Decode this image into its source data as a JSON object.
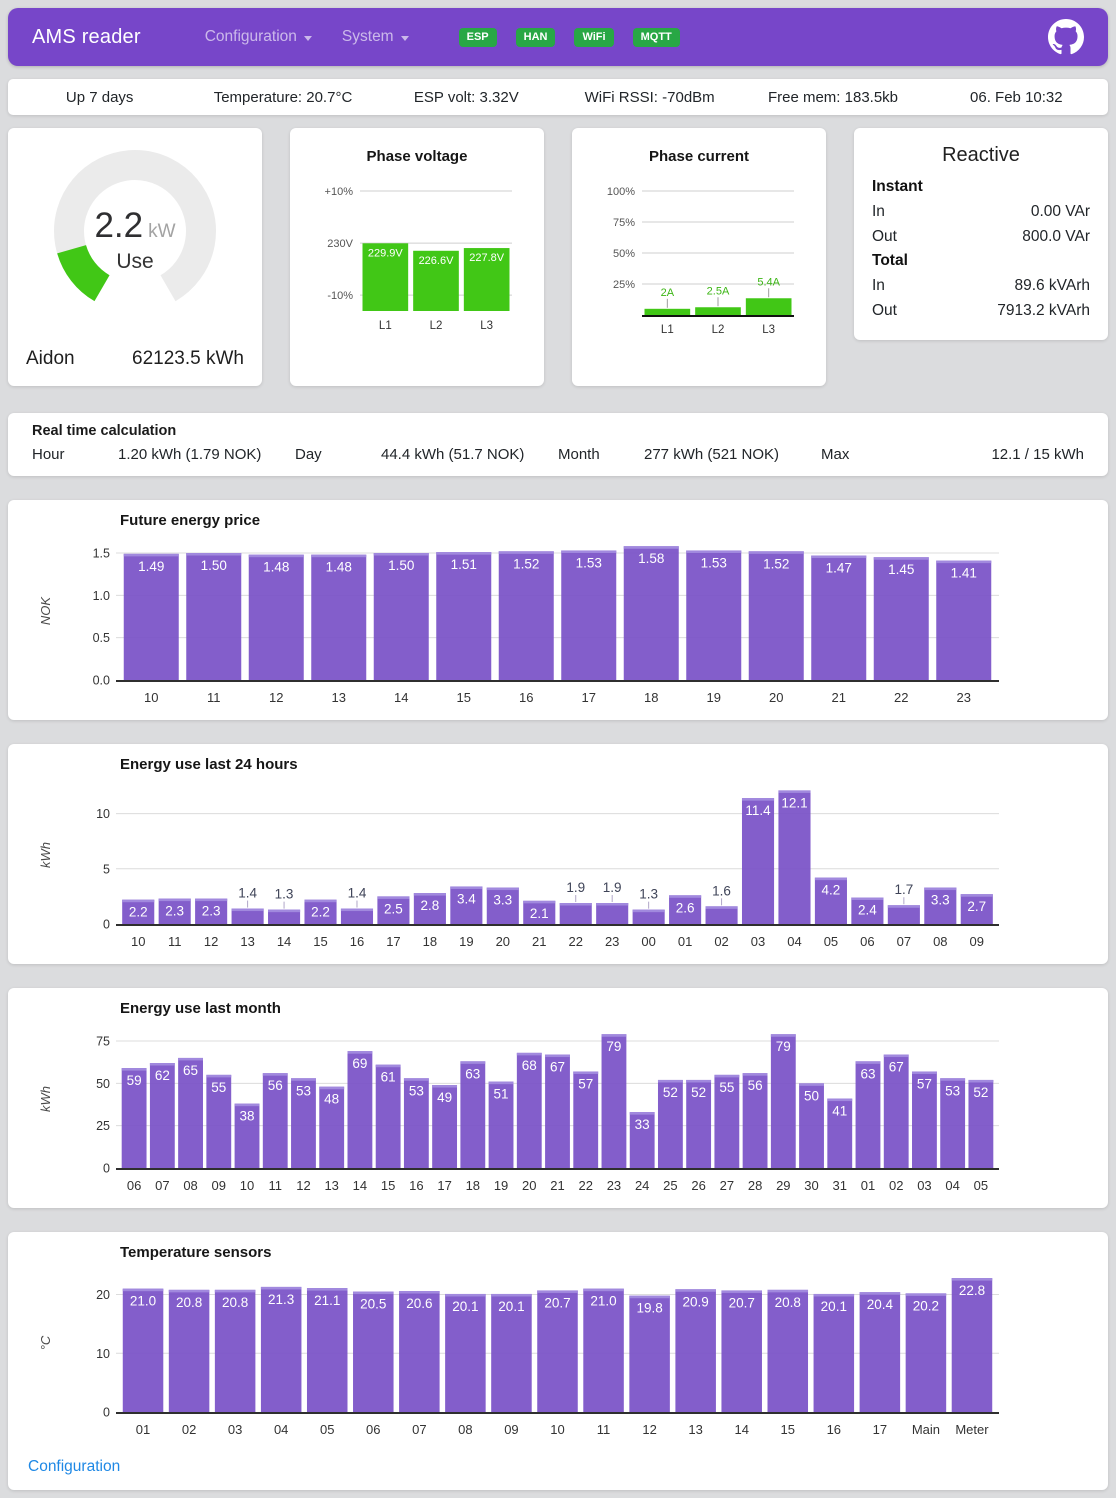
{
  "header": {
    "brand": "AMS reader",
    "nav": [
      {
        "label": "Configuration"
      },
      {
        "label": "System"
      }
    ],
    "badges": [
      "ESP",
      "HAN",
      "WiFi",
      "MQTT"
    ]
  },
  "status_bar": [
    "Up 7 days",
    "Temperature: 20.7°C",
    "ESP volt: 3.32V",
    "WiFi RSSI: -70dBm",
    "Free mem: 183.5kb",
    "06. Feb 10:32"
  ],
  "gauge": {
    "value": "2.2",
    "unit": "kW",
    "label": "Use",
    "meter_name": "Aidon",
    "total": "62123.5 kWh",
    "value_num": 2.2,
    "max": 15
  },
  "reactive": {
    "title": "Reactive",
    "sections": [
      {
        "title": "Instant",
        "rows": [
          [
            "In",
            "0.00 VAr"
          ],
          [
            "Out",
            "800.0 VAr"
          ]
        ]
      },
      {
        "title": "Total",
        "rows": [
          [
            "In",
            "89.6 kVArh"
          ],
          [
            "Out",
            "7913.2 kVArh"
          ]
        ]
      }
    ]
  },
  "realtime": {
    "title": "Real time calculation",
    "items": [
      [
        "Hour",
        "1.20 kWh (1.79 NOK)"
      ],
      [
        "Day",
        "44.4 kWh (51.7 NOK)"
      ],
      [
        "Month",
        "277 kWh (521 NOK)"
      ],
      [
        "Max",
        "12.1 / 15 kWh"
      ]
    ]
  },
  "footer": {
    "link": "Configuration"
  },
  "theme": {
    "purple": "#7746c9",
    "bar_purple": "#7a52c7",
    "bar_purple_cap": "#a189de",
    "green": "#41c716",
    "green_label": "#3cb615",
    "badge_green": "#28a745",
    "link_blue": "#1e88e5",
    "grid": "#dcdcdc",
    "axis": "#2f2f2f",
    "gauge_track": "#ebebeb"
  },
  "chart_data": [
    {
      "id": "phase_voltage",
      "type": "bar",
      "layout": "mini",
      "title": "Phase voltage",
      "categories": [
        "L1",
        "L2",
        "L3"
      ],
      "values": [
        229.9,
        226.6,
        227.8
      ],
      "value_labels": [
        "229.9V",
        "226.6V",
        "227.8V"
      ],
      "ticks": [
        {
          "label": "+10%",
          "value": 253
        },
        {
          "label": "230V",
          "value": 230
        },
        {
          "label": "-10%",
          "value": 207
        }
      ],
      "ymin": 200,
      "ymax": 253,
      "baseline": false,
      "color": "green",
      "label_placement": "inside"
    },
    {
      "id": "phase_current",
      "type": "bar",
      "layout": "mini",
      "title": "Phase current",
      "categories": [
        "L1",
        "L2",
        "L3"
      ],
      "values": [
        2,
        2.5,
        5.4
      ],
      "value_labels": [
        "2A",
        "2.5A",
        "5.4A"
      ],
      "ticks": [
        {
          "label": "100%",
          "value": 40
        },
        {
          "label": "75%",
          "value": 30
        },
        {
          "label": "50%",
          "value": 20
        },
        {
          "label": "25%",
          "value": 10
        }
      ],
      "ymin": 0,
      "ymax": 40,
      "baseline": true,
      "color": "green",
      "label_placement": "above"
    },
    {
      "id": "future_price",
      "type": "bar",
      "layout": "wide",
      "title": "Future energy price",
      "ylabel": "NOK",
      "categories": [
        "10",
        "11",
        "12",
        "13",
        "14",
        "15",
        "16",
        "17",
        "18",
        "19",
        "20",
        "21",
        "22",
        "23"
      ],
      "values": [
        1.49,
        1.5,
        1.48,
        1.48,
        1.5,
        1.51,
        1.52,
        1.53,
        1.58,
        1.53,
        1.52,
        1.47,
        1.45,
        1.41
      ],
      "value_labels": [
        "1.49",
        "1.50",
        "1.48",
        "1.48",
        "1.50",
        "1.51",
        "1.52",
        "1.53",
        "1.58",
        "1.53",
        "1.52",
        "1.47",
        "1.45",
        "1.41"
      ],
      "ticks": [
        {
          "label": "0.0",
          "value": 0
        },
        {
          "label": "0.5",
          "value": 0.5
        },
        {
          "label": "1.0",
          "value": 1.0
        },
        {
          "label": "1.5",
          "value": 1.5
        }
      ],
      "ylim": [
        0,
        1.63
      ]
    },
    {
      "id": "energy_24h",
      "type": "bar",
      "layout": "wide",
      "title": "Energy use last 24 hours",
      "ylabel": "kWh",
      "categories": [
        "10",
        "11",
        "12",
        "13",
        "14",
        "15",
        "16",
        "17",
        "18",
        "19",
        "20",
        "21",
        "22",
        "23",
        "00",
        "01",
        "02",
        "03",
        "04",
        "05",
        "06",
        "07",
        "08",
        "09"
      ],
      "values": [
        2.2,
        2.3,
        2.3,
        1.4,
        1.3,
        2.2,
        1.4,
        2.5,
        2.8,
        3.4,
        3.3,
        2.1,
        1.9,
        1.9,
        1.3,
        2.6,
        1.6,
        11.4,
        12.1,
        4.2,
        2.4,
        1.7,
        3.3,
        2.7
      ],
      "value_labels": [
        "2.2",
        "2.3",
        "2.3",
        "1.4",
        "1.3",
        "2.2",
        "1.4",
        "2.5",
        "2.8",
        "3.4",
        "3.3",
        "2.1",
        "1.9",
        "1.9",
        "1.3",
        "2.6",
        "1.6",
        "11.4",
        "12.1",
        "4.2",
        "2.4",
        "1.7",
        "3.3",
        "2.7"
      ],
      "ticks": [
        {
          "label": "0",
          "value": 0
        },
        {
          "label": "5",
          "value": 5
        },
        {
          "label": "10",
          "value": 10
        }
      ],
      "ylim": [
        0,
        12.5
      ]
    },
    {
      "id": "energy_month",
      "type": "bar",
      "layout": "wide",
      "title": "Energy use last month",
      "ylabel": "kWh",
      "categories": [
        "06",
        "07",
        "08",
        "09",
        "10",
        "11",
        "12",
        "13",
        "14",
        "15",
        "16",
        "17",
        "18",
        "19",
        "20",
        "21",
        "22",
        "23",
        "24",
        "25",
        "26",
        "27",
        "28",
        "29",
        "30",
        "31",
        "01",
        "02",
        "03",
        "04",
        "05"
      ],
      "values": [
        59,
        62,
        65,
        55,
        38,
        56,
        53,
        48,
        69,
        61,
        53,
        49,
        63,
        51,
        68,
        67,
        57,
        79,
        33,
        52,
        52,
        55,
        56,
        79,
        50,
        41,
        63,
        67,
        57,
        53,
        52
      ],
      "value_labels": [
        "59",
        "62",
        "65",
        "55",
        "38",
        "56",
        "53",
        "48",
        "69",
        "61",
        "53",
        "49",
        "63",
        "51",
        "68",
        "67",
        "57",
        "79",
        "33",
        "52",
        "52",
        "55",
        "56",
        "79",
        "50",
        "41",
        "63",
        "67",
        "57",
        "53",
        "52"
      ],
      "ticks": [
        {
          "label": "0",
          "value": 0
        },
        {
          "label": "25",
          "value": 25
        },
        {
          "label": "50",
          "value": 50
        },
        {
          "label": "75",
          "value": 75
        }
      ],
      "ylim": [
        0,
        81.5
      ]
    },
    {
      "id": "temperatures",
      "type": "bar",
      "layout": "wide",
      "title": "Temperature sensors",
      "ylabel": "°C",
      "categories": [
        "01",
        "02",
        "03",
        "04",
        "05",
        "06",
        "07",
        "08",
        "09",
        "10",
        "11",
        "12",
        "13",
        "14",
        "15",
        "16",
        "17",
        "Main",
        "Meter"
      ],
      "values": [
        21.0,
        20.8,
        20.8,
        21.3,
        21.1,
        20.5,
        20.6,
        20.1,
        20.1,
        20.7,
        21.0,
        19.8,
        20.9,
        20.7,
        20.8,
        20.1,
        20.4,
        20.2,
        22.8
      ],
      "value_labels": [
        "21.0",
        "20.8",
        "20.8",
        "21.3",
        "21.1",
        "20.5",
        "20.6",
        "20.1",
        "20.1",
        "20.7",
        "21.0",
        "19.8",
        "20.9",
        "20.7",
        "20.8",
        "20.1",
        "20.4",
        "20.2",
        "22.8"
      ],
      "ticks": [
        {
          "label": "0",
          "value": 0
        },
        {
          "label": "10",
          "value": 10
        },
        {
          "label": "20",
          "value": 20
        }
      ],
      "ylim": [
        0,
        23.5
      ]
    }
  ]
}
